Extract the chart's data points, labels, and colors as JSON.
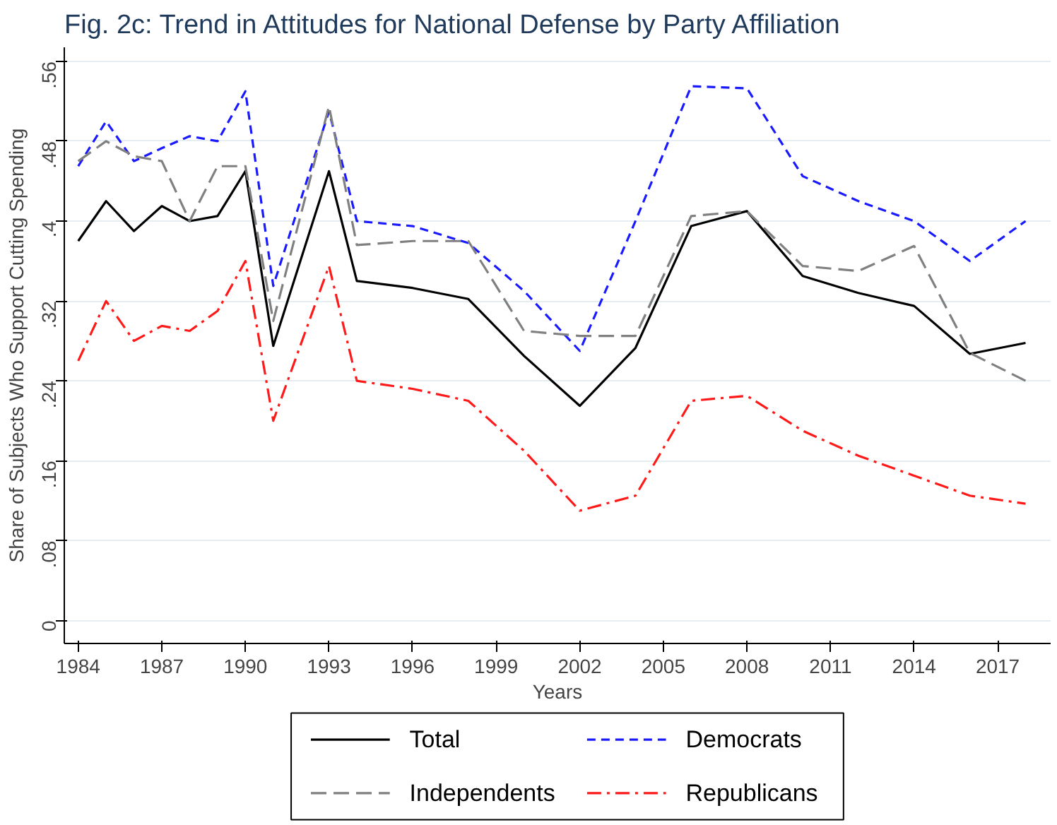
{
  "chart_data": {
    "type": "line",
    "title": "Fig. 2c: Trend in Attitudes for National Defense by Party Affiliation",
    "xlabel": "Years",
    "ylabel": "Share of Subjects Who Support Cutting Spending",
    "x": [
      1984,
      1985,
      1986,
      1987,
      1988,
      1989,
      1990,
      1991,
      1993,
      1994,
      1996,
      1998,
      2000,
      2002,
      2004,
      2006,
      2008,
      2010,
      2012,
      2014,
      2016,
      2018
    ],
    "series": [
      {
        "name": "Total",
        "color": "#000000",
        "line_style": "solid",
        "values": [
          0.38,
          0.42,
          0.39,
          0.415,
          0.4,
          0.405,
          0.45,
          0.275,
          0.45,
          0.34,
          0.333,
          0.322,
          0.265,
          0.215,
          0.273,
          0.395,
          0.41,
          0.345,
          0.328,
          0.315,
          0.267,
          0.278
        ]
      },
      {
        "name": "Democrats",
        "color": "#1a1aff",
        "line_style": "dashed",
        "values": [
          0.455,
          0.5,
          0.46,
          0.473,
          0.485,
          0.48,
          0.53,
          0.335,
          0.51,
          0.4,
          0.395,
          0.378,
          0.33,
          0.27,
          0.4,
          0.535,
          0.533,
          0.445,
          0.42,
          0.4,
          0.36,
          0.4
        ]
      },
      {
        "name": "Independents",
        "color": "#808080",
        "line_style": "longdash",
        "values": [
          0.46,
          0.48,
          0.465,
          0.46,
          0.4,
          0.455,
          0.455,
          0.3,
          0.515,
          0.376,
          0.38,
          0.38,
          0.29,
          0.285,
          0.285,
          0.405,
          0.41,
          0.355,
          0.35,
          0.375,
          0.268,
          0.24
        ]
      },
      {
        "name": "Republicans",
        "color": "#ff1a1a",
        "line_style": "dashdot",
        "values": [
          0.26,
          0.32,
          0.28,
          0.295,
          0.29,
          0.31,
          0.36,
          0.2,
          0.355,
          0.24,
          0.232,
          0.22,
          0.17,
          0.11,
          0.125,
          0.22,
          0.225,
          0.19,
          0.165,
          0.145,
          0.125,
          0.117
        ]
      }
    ],
    "xlim": [
      1983.5,
      2018.9
    ],
    "ylim": [
      -0.023,
      0.574
    ],
    "xticks": [
      1984,
      1987,
      1990,
      1993,
      1996,
      1999,
      2002,
      2005,
      2008,
      2011,
      2014,
      2017
    ],
    "yticks": [
      {
        "value": 0,
        "label": "0"
      },
      {
        "value": 0.08,
        "label": ".08"
      },
      {
        "value": 0.16,
        "label": ".16"
      },
      {
        "value": 0.24,
        "label": ".24"
      },
      {
        "value": 0.32,
        "label": ".32"
      },
      {
        "value": 0.4,
        "label": ".4"
      },
      {
        "value": 0.48,
        "label": ".48"
      },
      {
        "value": 0.56,
        "label": ".56"
      }
    ],
    "grid": "y",
    "legend": "bottom",
    "marker": "none"
  }
}
